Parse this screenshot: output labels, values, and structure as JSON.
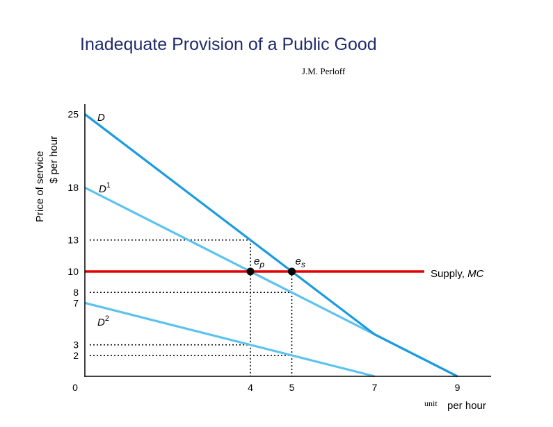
{
  "title": "Inadequate Provision of a Public Good",
  "author": "J.M. Perloff",
  "colors": {
    "demand": "#1a9be0",
    "individual_demand": "#5cc3ee",
    "supply": "#e00000",
    "guide": "#000000"
  },
  "chart_data": {
    "type": "line",
    "ylabel_line1": "Price of service",
    "ylabel_line2": "$ per hour",
    "xlabel_unit": "unit",
    "xlabel_rest": "per hour",
    "xlim": [
      0,
      9.4
    ],
    "ylim": [
      0,
      25.6
    ],
    "x_ticks": [
      "0",
      "4",
      "5",
      "7",
      "9"
    ],
    "y_ticks": [
      "25",
      "18",
      "13",
      "10",
      "8",
      "7",
      "3",
      "2"
    ],
    "series": [
      {
        "name": "D",
        "sup": "",
        "color_key": "demand",
        "points": [
          [
            0,
            25
          ],
          [
            7,
            4
          ],
          [
            9,
            0
          ]
        ]
      },
      {
        "name": "D",
        "sup": "1",
        "color_key": "individual_demand",
        "points": [
          [
            0,
            18
          ],
          [
            9,
            0
          ]
        ]
      },
      {
        "name": "D",
        "sup": "2",
        "color_key": "individual_demand",
        "points": [
          [
            0,
            7
          ],
          [
            7,
            0
          ]
        ]
      },
      {
        "name": "Supply, ",
        "name_ital": "MC",
        "color_key": "supply",
        "points": [
          [
            0,
            10
          ],
          [
            8.2,
            10
          ]
        ]
      }
    ],
    "equilibria": [
      {
        "label": "e",
        "sub": "p",
        "x": 4,
        "y": 10
      },
      {
        "label": "e",
        "sub": "s",
        "x": 5,
        "y": 10
      }
    ],
    "guides": [
      {
        "y": 13,
        "x_end": 4
      },
      {
        "y": 8,
        "x_end": 5
      },
      {
        "y": 3,
        "x_end": 4
      },
      {
        "y": 2,
        "x_end": 5
      },
      {
        "x": 4,
        "y_end": 13
      },
      {
        "x": 5,
        "y_end": 10
      }
    ]
  }
}
